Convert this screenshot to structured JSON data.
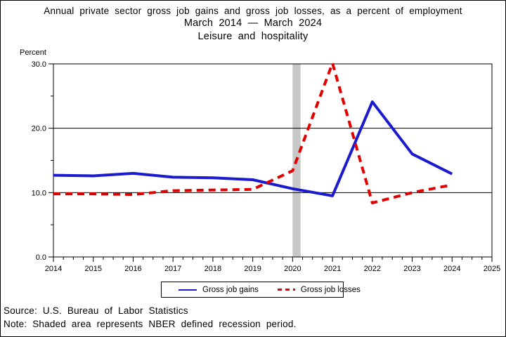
{
  "title": {
    "line1": "Annual private sector gross job gains and gross job losses, as a percent of employment",
    "line2": "March 2014 — March 2024",
    "line3": "Leisure and hospitality"
  },
  "legend": {
    "gains": "Gross job gains",
    "losses": "Gross job losses"
  },
  "notes": {
    "source": "Source: U.S. Bureau of Labor Statistics",
    "note": "Note: Shaded area represents NBER defined recession period."
  },
  "chart_data": {
    "type": "line",
    "title": "Annual private sector gross job gains and gross job losses, as a percent of employment — March 2014 – March 2024 — Leisure and hospitality",
    "xlabel": "",
    "ylabel": "Percent",
    "x": [
      2014,
      2015,
      2016,
      2017,
      2018,
      2019,
      2020,
      2021,
      2022,
      2023,
      2024
    ],
    "series": [
      {
        "name": "Gross job gains",
        "color": "#1b1bcd",
        "style": "solid",
        "values": [
          12.7,
          12.6,
          13.0,
          12.4,
          12.3,
          12.0,
          10.6,
          9.5,
          24.1,
          16.0,
          12.9
        ]
      },
      {
        "name": "Gross job losses",
        "color": "#e10000",
        "style": "dashed",
        "values": [
          9.8,
          9.8,
          9.7,
          10.3,
          10.4,
          10.5,
          13.4,
          30.1,
          8.4,
          10.0,
          11.2
        ]
      }
    ],
    "xlim": [
      2014,
      2025
    ],
    "ylim": [
      0,
      30
    ],
    "x_ticks": [
      2014,
      2015,
      2016,
      2017,
      2018,
      2019,
      2020,
      2021,
      2022,
      2023,
      2024,
      2025
    ],
    "x_tick_labels": [
      "2014",
      "2015",
      "2016",
      "2017",
      "2018",
      "2019",
      "2020",
      "2021",
      "2022",
      "2023",
      "2024",
      "2025"
    ],
    "x_minor_step": 0.25,
    "y_ticks": [
      0,
      10,
      20,
      30
    ],
    "y_tick_labels": [
      "0.0",
      "10.0",
      "20.0",
      "30.0"
    ],
    "y_minor_ticks": [
      5,
      15,
      25
    ],
    "gridlines": [
      10,
      20
    ],
    "grid": true,
    "recession_band": {
      "start": 2020.0,
      "end": 2020.2,
      "color": "#c7c7c7"
    },
    "legend_position": "bottom"
  }
}
